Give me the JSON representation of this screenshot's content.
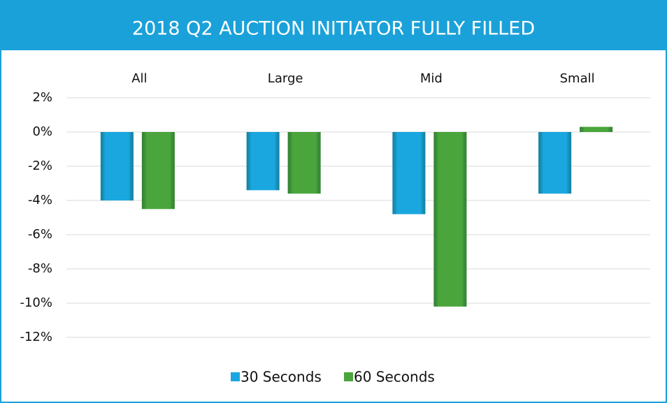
{
  "chart_data": {
    "type": "bar",
    "title": "2018 Q2 AUCTION INITIATOR FULLY FILLED",
    "categories": [
      "All",
      "Large",
      "Mid",
      "Small"
    ],
    "series": [
      {
        "name": "30 Seconds",
        "color": "#1aa7e0",
        "values": [
          -4.0,
          -3.4,
          -4.8,
          -3.6
        ]
      },
      {
        "name": "60 Seconds",
        "color": "#4aa63c",
        "values": [
          -4.5,
          -3.6,
          -10.2,
          0.3
        ]
      }
    ],
    "ylim": [
      -12,
      2
    ],
    "yticks": [
      {
        "value": 2,
        "label": "2%"
      },
      {
        "value": 0,
        "label": "0%"
      },
      {
        "value": -2,
        "label": "-2%"
      },
      {
        "value": -4,
        "label": "-4%"
      },
      {
        "value": -6,
        "label": "-6%"
      },
      {
        "value": -8,
        "label": "-8%"
      },
      {
        "value": -10,
        "label": "-10%"
      },
      {
        "value": -12,
        "label": "-12%"
      }
    ],
    "grid": true,
    "legend": "bottom"
  }
}
